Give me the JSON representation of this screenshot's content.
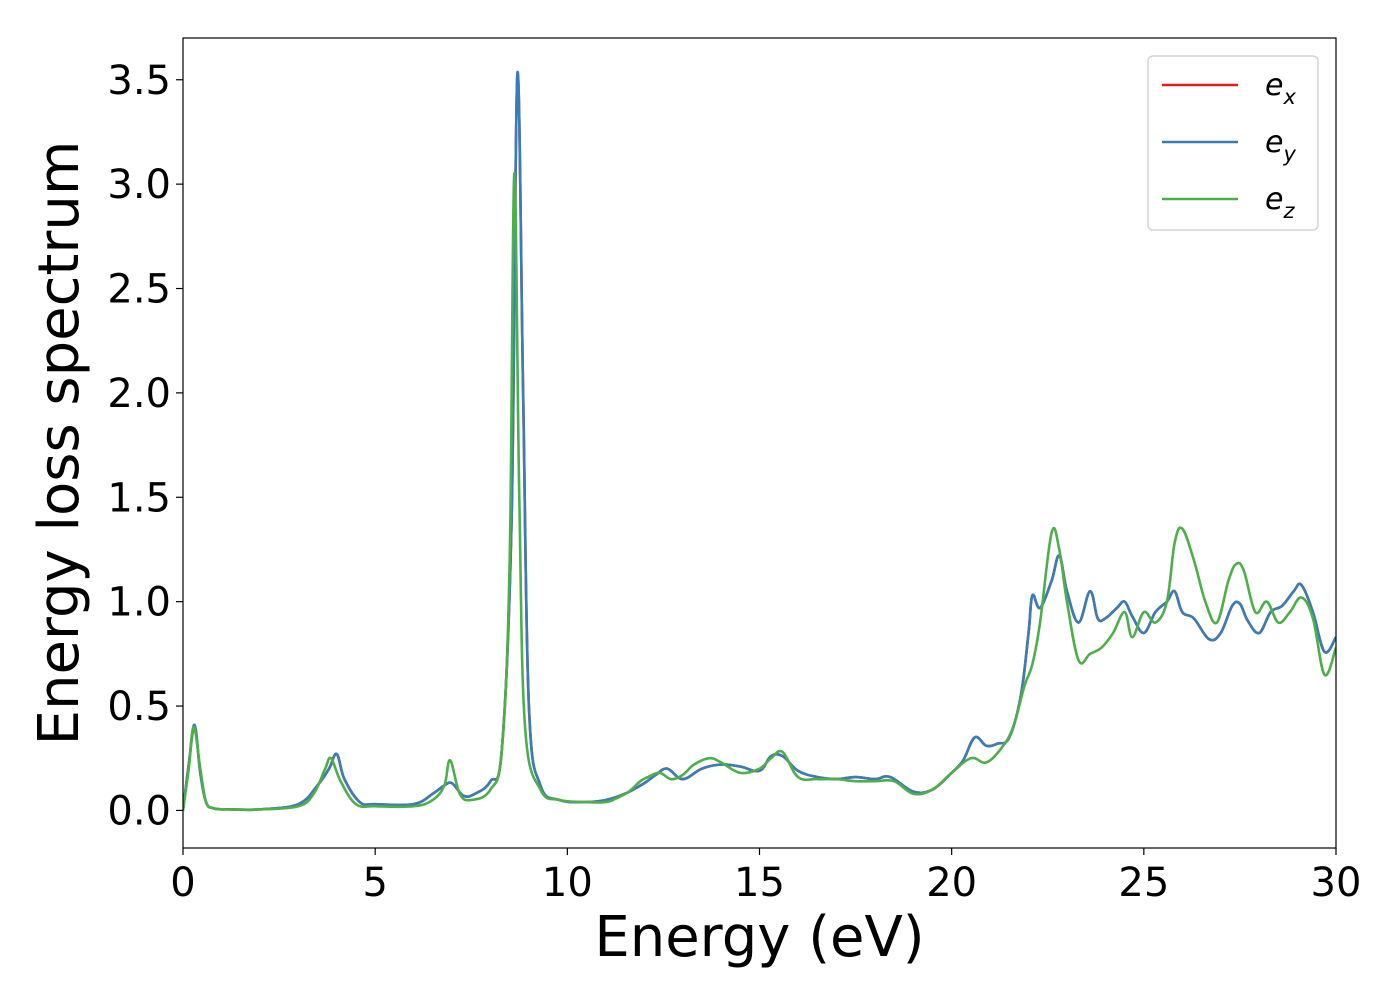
{
  "chart_data": {
    "type": "line",
    "title": "",
    "xlabel": "Energy (eV)",
    "ylabel": "Energy loss spectrum",
    "xlim": [
      0,
      30
    ],
    "ylim": [
      -0.18,
      3.7
    ],
    "xticks": [
      0,
      5,
      10,
      15,
      20,
      25,
      30
    ],
    "xtick_labels": [
      "0",
      "5",
      "10",
      "15",
      "20",
      "25",
      "30"
    ],
    "yticks": [
      0.0,
      0.5,
      1.0,
      1.5,
      2.0,
      2.5,
      3.0,
      3.5
    ],
    "ytick_labels": [
      "0.0",
      "0.5",
      "1.0",
      "1.5",
      "2.0",
      "2.5",
      "3.0",
      "3.5"
    ],
    "grid": false,
    "legend_position": "top-right",
    "series": [
      {
        "name": "e_x",
        "label_base": "e",
        "label_sub": "x",
        "color": "#e41a1c",
        "x": [
          0,
          0.15,
          0.3,
          0.45,
          0.6,
          0.8,
          1.2,
          2,
          3,
          3.5,
          3.8,
          4.0,
          4.2,
          4.6,
          5,
          6,
          6.5,
          6.8,
          7.0,
          7.3,
          7.6,
          8.0,
          8.3,
          8.55,
          8.7,
          8.85,
          9.0,
          9.3,
          9.8,
          10.5,
          11,
          11.5,
          12,
          12.3,
          12.6,
          13,
          13.5,
          14,
          14.5,
          15,
          15.3,
          15.6,
          16,
          16.5,
          17,
          17.5,
          18,
          18.4,
          19,
          19.5,
          20,
          20.3,
          20.6,
          20.9,
          21.2,
          21.5,
          21.8,
          22.0,
          22.1,
          22.3,
          22.6,
          22.8,
          23.0,
          23.3,
          23.6,
          23.8,
          24.0,
          24.3,
          24.5,
          24.7,
          25.0,
          25.3,
          25.6,
          25.8,
          26.0,
          26.3,
          26.7,
          27.0,
          27.3,
          27.5,
          27.7,
          28.0,
          28.3,
          28.6,
          28.9,
          29.1,
          29.4,
          29.7,
          30
        ],
        "y": [
          0.0,
          0.22,
          0.4,
          0.18,
          0.04,
          0.01,
          0.005,
          0.005,
          0.03,
          0.12,
          0.2,
          0.27,
          0.15,
          0.04,
          0.03,
          0.03,
          0.08,
          0.12,
          0.13,
          0.07,
          0.08,
          0.14,
          0.3,
          1.4,
          3.52,
          2.0,
          0.5,
          0.12,
          0.05,
          0.04,
          0.05,
          0.08,
          0.13,
          0.17,
          0.2,
          0.15,
          0.2,
          0.22,
          0.21,
          0.19,
          0.26,
          0.26,
          0.19,
          0.16,
          0.15,
          0.16,
          0.15,
          0.16,
          0.09,
          0.1,
          0.18,
          0.24,
          0.35,
          0.31,
          0.32,
          0.35,
          0.55,
          0.85,
          1.03,
          0.97,
          1.1,
          1.22,
          1.05,
          0.9,
          1.05,
          0.92,
          0.92,
          0.97,
          1.0,
          0.93,
          0.85,
          0.95,
          1.0,
          1.05,
          0.95,
          0.92,
          0.82,
          0.85,
          0.98,
          0.99,
          0.91,
          0.85,
          0.95,
          0.98,
          1.05,
          1.08,
          0.95,
          0.76,
          0.83
        ]
      },
      {
        "name": "e_y",
        "label_base": "e",
        "label_sub": "y",
        "color": "#377eb8",
        "x": [
          0,
          0.15,
          0.3,
          0.45,
          0.6,
          0.8,
          1.2,
          2,
          3,
          3.5,
          3.8,
          4.0,
          4.2,
          4.6,
          5,
          6,
          6.5,
          6.8,
          7.0,
          7.3,
          7.6,
          8.0,
          8.3,
          8.55,
          8.7,
          8.85,
          9.0,
          9.3,
          9.8,
          10.5,
          11,
          11.5,
          12,
          12.3,
          12.6,
          13,
          13.5,
          14,
          14.5,
          15,
          15.3,
          15.6,
          16,
          16.5,
          17,
          17.5,
          18,
          18.4,
          19,
          19.5,
          20,
          20.3,
          20.6,
          20.9,
          21.2,
          21.5,
          21.8,
          22.0,
          22.1,
          22.3,
          22.6,
          22.8,
          23.0,
          23.3,
          23.6,
          23.8,
          24.0,
          24.3,
          24.5,
          24.7,
          25.0,
          25.3,
          25.6,
          25.8,
          26.0,
          26.3,
          26.7,
          27.0,
          27.3,
          27.5,
          27.7,
          28.0,
          28.3,
          28.6,
          28.9,
          29.1,
          29.4,
          29.7,
          30
        ],
        "y": [
          0.0,
          0.22,
          0.41,
          0.18,
          0.04,
          0.01,
          0.005,
          0.005,
          0.03,
          0.12,
          0.2,
          0.27,
          0.15,
          0.04,
          0.03,
          0.03,
          0.08,
          0.12,
          0.13,
          0.07,
          0.08,
          0.14,
          0.3,
          1.4,
          3.53,
          2.0,
          0.5,
          0.12,
          0.05,
          0.04,
          0.05,
          0.08,
          0.13,
          0.17,
          0.2,
          0.15,
          0.2,
          0.22,
          0.21,
          0.19,
          0.26,
          0.26,
          0.19,
          0.16,
          0.15,
          0.16,
          0.15,
          0.16,
          0.09,
          0.1,
          0.18,
          0.24,
          0.35,
          0.31,
          0.32,
          0.35,
          0.55,
          0.85,
          1.03,
          0.97,
          1.1,
          1.22,
          1.05,
          0.9,
          1.05,
          0.92,
          0.92,
          0.97,
          1.0,
          0.93,
          0.85,
          0.95,
          1.0,
          1.05,
          0.95,
          0.92,
          0.82,
          0.85,
          0.98,
          0.99,
          0.91,
          0.85,
          0.95,
          0.98,
          1.05,
          1.08,
          0.95,
          0.76,
          0.83
        ]
      },
      {
        "name": "e_z",
        "label_base": "e",
        "label_sub": "z",
        "color": "#4daf4a",
        "x": [
          0,
          0.15,
          0.28,
          0.45,
          0.6,
          0.8,
          1.2,
          2,
          3,
          3.4,
          3.7,
          3.85,
          4.1,
          4.5,
          5,
          6,
          6.5,
          6.8,
          6.95,
          7.2,
          7.5,
          8.0,
          8.3,
          8.5,
          8.62,
          8.75,
          8.9,
          9.3,
          9.8,
          10.5,
          11,
          11.3,
          11.6,
          11.9,
          12.1,
          12.4,
          12.7,
          13.0,
          13.3,
          13.7,
          14.0,
          14.5,
          15,
          15.3,
          15.6,
          16,
          16.5,
          17,
          17.5,
          18,
          18.5,
          19,
          19.5,
          20,
          20.5,
          20.9,
          21.3,
          21.6,
          21.9,
          22.1,
          22.3,
          22.6,
          22.8,
          23.0,
          23.3,
          23.6,
          23.9,
          24.2,
          24.5,
          24.7,
          25.0,
          25.3,
          25.6,
          25.8,
          26.0,
          26.3,
          26.6,
          26.9,
          27.2,
          27.4,
          27.6,
          27.9,
          28.2,
          28.5,
          28.8,
          29.1,
          29.4,
          29.7,
          30
        ],
        "y": [
          0.0,
          0.2,
          0.4,
          0.2,
          0.04,
          0.01,
          0.005,
          0.005,
          0.02,
          0.08,
          0.2,
          0.25,
          0.14,
          0.03,
          0.02,
          0.02,
          0.05,
          0.12,
          0.24,
          0.08,
          0.05,
          0.1,
          0.3,
          1.2,
          3.05,
          1.5,
          0.4,
          0.1,
          0.05,
          0.04,
          0.04,
          0.06,
          0.09,
          0.14,
          0.16,
          0.18,
          0.15,
          0.17,
          0.22,
          0.25,
          0.23,
          0.18,
          0.2,
          0.25,
          0.28,
          0.16,
          0.15,
          0.15,
          0.14,
          0.14,
          0.14,
          0.08,
          0.1,
          0.18,
          0.25,
          0.23,
          0.3,
          0.4,
          0.6,
          0.7,
          0.9,
          1.33,
          1.25,
          1.0,
          0.72,
          0.75,
          0.78,
          0.85,
          0.95,
          0.83,
          0.95,
          0.9,
          1.0,
          1.28,
          1.35,
          1.2,
          1.0,
          0.9,
          1.1,
          1.18,
          1.15,
          0.95,
          1.0,
          0.9,
          0.95,
          1.02,
          0.92,
          0.65,
          0.78
        ]
      }
    ]
  }
}
